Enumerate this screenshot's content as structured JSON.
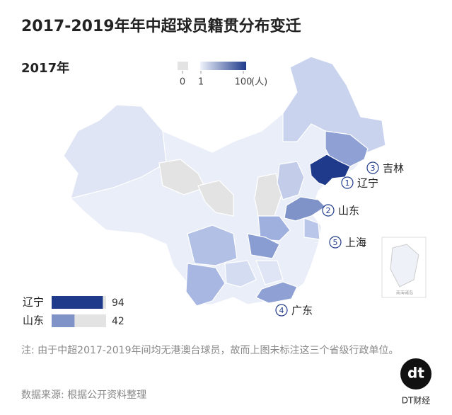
{
  "title": "2017-2019年年中超球员籍贯分布变迁",
  "year": "2017年",
  "legend": {
    "ticks": [
      0,
      1,
      100
    ],
    "unit": "(人)",
    "no_data_color": "#e3e3e3",
    "low_color": "#eef2fb",
    "high_color": "#1f3a8a"
  },
  "map_labels": [
    {
      "rank": "3",
      "name": "吉林"
    },
    {
      "rank": "1",
      "name": "辽宁"
    },
    {
      "rank": "2",
      "name": "山东"
    },
    {
      "rank": "5",
      "name": "上海"
    },
    {
      "rank": "4",
      "name": "广东"
    }
  ],
  "inset": "南海诸岛",
  "bars": {
    "xlim": [
      0,
      100
    ],
    "rows": [
      {
        "name": "辽宁",
        "value": 94,
        "color": "#1f3a8a"
      },
      {
        "name": "山东",
        "value": 42,
        "color": "#7f93c8"
      }
    ]
  },
  "note": "注: 由于中超2017-2019年间均无港澳台球员，故而上图未标注这三个省级行政单位。",
  "source": "数据来源: 根据公开资料整理",
  "brand": {
    "logo": "dt",
    "name": "DT财经"
  }
}
